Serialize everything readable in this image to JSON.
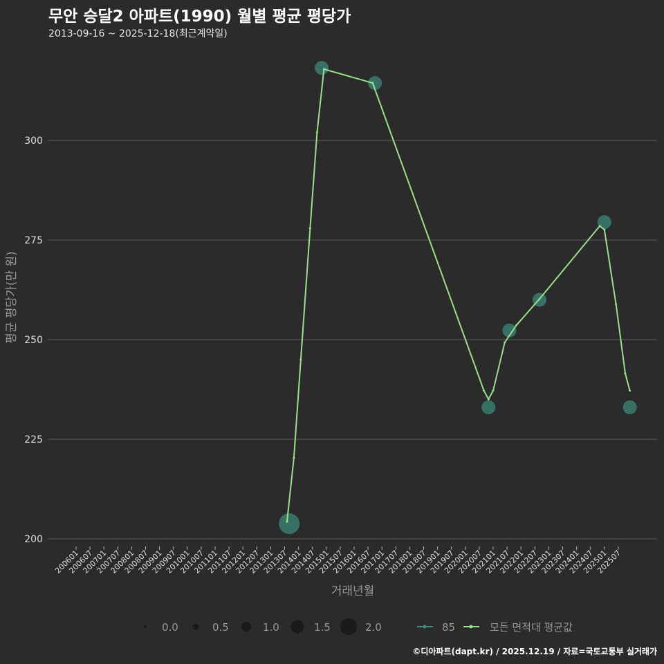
{
  "title": "무안 승달2 아파트(1990) 월별 평균 평당가",
  "subtitle": "2013-09-16 ~ 2025-12-18(최근계약일)",
  "footer": "©디아파트(dapt.kr) / 2025.12.19 / 자료=국토교통부 실거래가",
  "colors": {
    "background": "#2b2b2b",
    "points": "#3f8f80",
    "line": "#98e08a",
    "grid": "#5a5a5a"
  },
  "chart_data": {
    "type": "line",
    "xlabel": "거래년월",
    "ylabel": "평균 평당가(만 원)",
    "ylim": [
      200,
      320
    ],
    "yticks": [
      200,
      225,
      250,
      275,
      300
    ],
    "xticks": [
      "200601",
      "200607",
      "200701",
      "200707",
      "200801",
      "200807",
      "200901",
      "200907",
      "201001",
      "201007",
      "201101",
      "201107",
      "201201",
      "201207",
      "201301",
      "201307",
      "201401",
      "201407",
      "201501",
      "201507",
      "201601",
      "201607",
      "201701",
      "201707",
      "201801",
      "201807",
      "201901",
      "201907",
      "202001",
      "202007",
      "202101",
      "202107",
      "202201",
      "202207",
      "202301",
      "202307",
      "202401",
      "202407",
      "202501",
      "202507"
    ],
    "series": [
      {
        "name": "85",
        "type": "scatter",
        "points": [
          {
            "x": "2013-09",
            "y": 203.8,
            "size": 2.0
          },
          {
            "x": "2014-11",
            "y": 318.2,
            "size": 1.0
          },
          {
            "x": "2016-10",
            "y": 314.4,
            "size": 1.0
          },
          {
            "x": "2020-11",
            "y": 233.0,
            "size": 1.0
          },
          {
            "x": "2021-08",
            "y": 252.3,
            "size": 1.0
          },
          {
            "x": "2022-09",
            "y": 260.0,
            "size": 1.0
          },
          {
            "x": "2025-01",
            "y": 279.5,
            "size": 1.0
          },
          {
            "x": "2025-12",
            "y": 233.0,
            "size": 1.0
          }
        ]
      },
      {
        "name": "모든 면적대 평균값",
        "type": "line",
        "points": [
          {
            "x": "2013-08",
            "y": 204.3
          },
          {
            "x": "2013-11",
            "y": 220.3
          },
          {
            "x": "2014-02",
            "y": 245
          },
          {
            "x": "2014-06",
            "y": 278
          },
          {
            "x": "2014-09",
            "y": 302
          },
          {
            "x": "2014-12",
            "y": 317.9
          },
          {
            "x": "2016-09",
            "y": 314.4
          },
          {
            "x": "2020-09",
            "y": 237.2
          },
          {
            "x": "2020-11",
            "y": 235
          },
          {
            "x": "2021-01",
            "y": 237.2
          },
          {
            "x": "2021-06",
            "y": 249.3
          },
          {
            "x": "2021-11",
            "y": 253.6
          },
          {
            "x": "2022-09",
            "y": 260.2
          },
          {
            "x": "2024-11",
            "y": 278.5
          },
          {
            "x": "2025-01",
            "y": 277.6
          },
          {
            "x": "2025-06",
            "y": 258.9
          },
          {
            "x": "2025-10",
            "y": 241.5
          },
          {
            "x": "2025-12",
            "y": 237.2
          }
        ]
      }
    ],
    "size_legend": [
      "0.0",
      "0.5",
      "1.0",
      "1.5",
      "2.0"
    ],
    "legend_position": "bottom"
  }
}
